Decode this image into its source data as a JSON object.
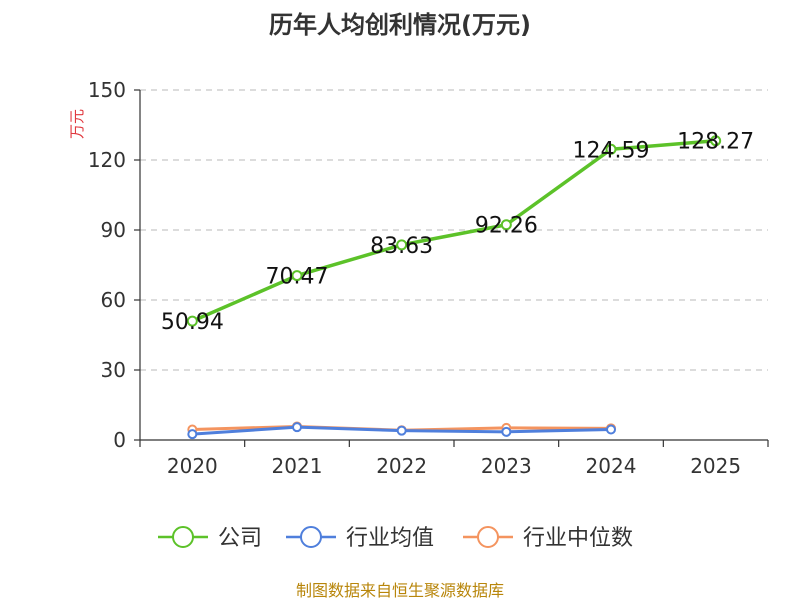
{
  "chart_data": {
    "type": "line",
    "title": "历年人均创利情况(万元)",
    "ylabel": "万元",
    "x": [
      "2020",
      "2021",
      "2022",
      "2023",
      "2024",
      "2025"
    ],
    "ylim": [
      0,
      150
    ],
    "yticks": [
      0,
      30,
      60,
      90,
      120,
      150
    ],
    "grid": true,
    "legend_position": "bottom",
    "series": [
      {
        "name": "公司",
        "color": "#5cc229",
        "values": [
          50.94,
          70.47,
          83.63,
          92.26,
          124.59,
          128.27
        ],
        "labels": [
          "50.94",
          "70.47",
          "83.63",
          "92.26",
          "124.59",
          "128.27"
        ]
      },
      {
        "name": "行业均值",
        "color": "#4f7fdc",
        "values": [
          2.5,
          5.5,
          4.0,
          3.5,
          4.5,
          null
        ]
      },
      {
        "name": "行业中位数",
        "color": "#f4945f",
        "values": [
          4.5,
          5.8,
          4.2,
          5.2,
          5.0,
          null
        ]
      }
    ]
  },
  "footer": "制图数据来自恒生聚源数据库"
}
